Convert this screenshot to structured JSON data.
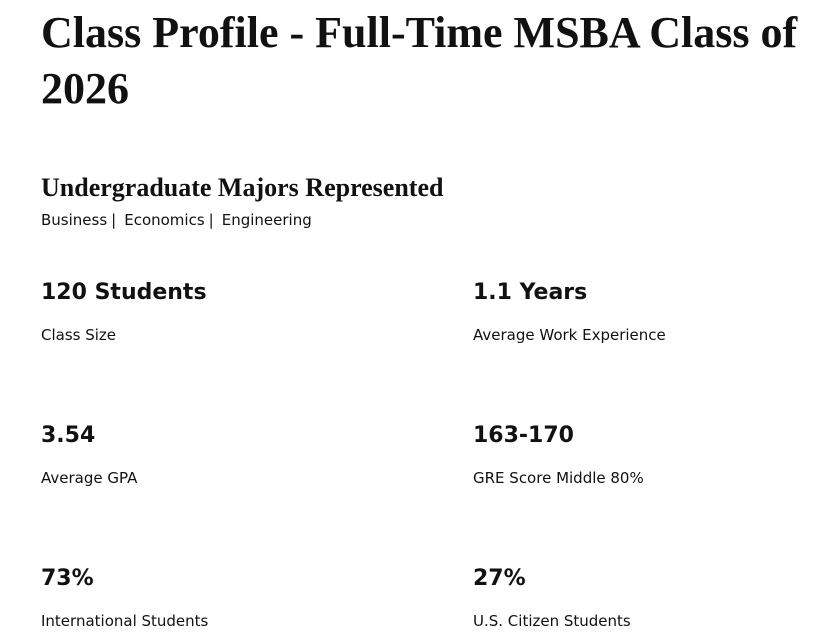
{
  "header": {
    "title": "Class Profile - Full-Time MSBA Class of 2026"
  },
  "majors": {
    "heading": "Undergraduate Majors Represented",
    "items": [
      "Business",
      "Economics",
      "Engineering"
    ]
  },
  "stats": [
    {
      "value": "120 Students",
      "label": "Class Size"
    },
    {
      "value": "1.1 Years",
      "label": "Average Work Experience"
    },
    {
      "value": "3.54",
      "label": "Average GPA"
    },
    {
      "value": "163-170",
      "label": "GRE Score Middle 80%"
    },
    {
      "value": "73%",
      "label": "International Students"
    },
    {
      "value": "27%",
      "label": "U.S. Citizen Students"
    }
  ]
}
